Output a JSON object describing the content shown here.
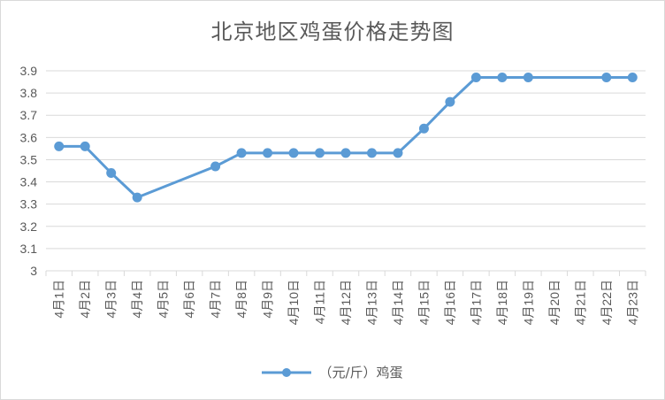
{
  "colors": {
    "series": "#5b9bd5",
    "grid": "#d9d9d9",
    "text": "#595959"
  },
  "chart_data": {
    "type": "line",
    "title": "北京地区鸡蛋价格走势图",
    "xlabel": "",
    "ylabel": "",
    "ylim": [
      3,
      3.9
    ],
    "y_ticks": [
      "3",
      "3.1",
      "3.2",
      "3.3",
      "3.4",
      "3.5",
      "3.6",
      "3.7",
      "3.8",
      "3.9"
    ],
    "grid": true,
    "legend_position": "bottom",
    "categories": [
      "4月1日",
      "4月2日",
      "4月3日",
      "4月4日",
      "4月5日",
      "4月6日",
      "4月7日",
      "4月8日",
      "4月9日",
      "4月10日",
      "4月11日",
      "4月12日",
      "4月13日",
      "4月14日",
      "4月15日",
      "4月16日",
      "4月17日",
      "4月18日",
      "4月19日",
      "4月20日",
      "4月21日",
      "4月22日",
      "4月23日"
    ],
    "series": [
      {
        "name": "（元/斤）鸡蛋",
        "values": [
          3.56,
          3.56,
          3.44,
          3.33,
          null,
          null,
          3.47,
          3.53,
          3.53,
          3.53,
          3.53,
          3.53,
          3.53,
          3.53,
          3.64,
          3.76,
          3.87,
          3.87,
          3.87,
          null,
          null,
          3.87,
          3.87
        ]
      }
    ]
  }
}
